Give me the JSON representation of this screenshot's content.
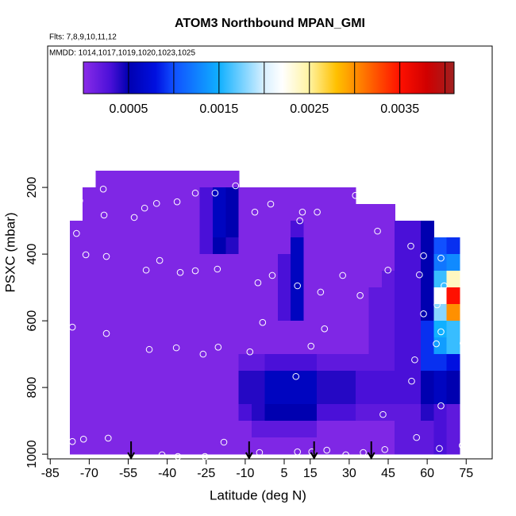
{
  "chart_data": {
    "type": "heatmap",
    "title": "ATOM3 Northbound MPAN_GMI",
    "subtitle": "Flts: 7,8,9,10,11,12",
    "annotation": "MMDD: 1014,1017,1019,1020,1023,1025",
    "x_label": "Latitude (deg N)",
    "y_label": "PSXC (mbar)",
    "xlim": [
      -86,
      85
    ],
    "ylim": [
      1014,
      -224
    ],
    "xticks": [
      -85,
      -70,
      -55,
      -40,
      -25,
      -10,
      5,
      15,
      30,
      45,
      60,
      75
    ],
    "yticks": [
      200,
      400,
      600,
      800,
      1000
    ],
    "x_edges": [
      -77.5,
      -72.5,
      -67.5,
      -62.5,
      -57.5,
      -52.5,
      -47.5,
      -42.5,
      -37.5,
      -32.5,
      -27.5,
      -22.5,
      -17.5,
      -12.5,
      -7.5,
      -2.5,
      2.5,
      7.5,
      12.5,
      17.5,
      22.5,
      27.5,
      32.5,
      37.5,
      42.5,
      47.5,
      52.5,
      57.5,
      62.5,
      67.5,
      72.5
    ],
    "y_edges": [
      150,
      200,
      250,
      300,
      350,
      400,
      450,
      500,
      550,
      600,
      650,
      700,
      750,
      800,
      850,
      900,
      950,
      1000
    ],
    "z": [
      [
        null,
        null,
        5e-05,
        5e-05,
        5e-05,
        5e-05,
        5e-05,
        5e-05,
        5e-05,
        5e-05,
        5e-05,
        5e-05,
        5e-05,
        null,
        null,
        null,
        null,
        null,
        null,
        null,
        null,
        null,
        null,
        null,
        null,
        null,
        null,
        null,
        null,
        null
      ],
      [
        null,
        5e-05,
        5e-05,
        5e-05,
        5e-05,
        5e-05,
        5e-05,
        5e-05,
        5e-05,
        5e-05,
        0.0003,
        0.0006,
        0.0005,
        5e-05,
        5e-05,
        5e-05,
        5e-05,
        5e-05,
        5e-05,
        5e-05,
        5e-05,
        5e-05,
        null,
        null,
        null,
        null,
        null,
        null,
        null,
        null
      ],
      [
        null,
        5e-05,
        5e-05,
        5e-05,
        5e-05,
        5e-05,
        5e-05,
        5e-05,
        5e-05,
        5e-05,
        0.0003,
        0.0006,
        0.0005,
        5e-05,
        5e-05,
        5e-05,
        5e-05,
        5e-05,
        5e-05,
        5e-05,
        5e-05,
        5e-05,
        5e-05,
        5e-05,
        5e-05,
        null,
        null,
        null,
        null,
        null
      ],
      [
        5e-05,
        5e-05,
        5e-05,
        5e-05,
        5e-05,
        5e-05,
        5e-05,
        5e-05,
        5e-05,
        5e-05,
        0.0003,
        0.0006,
        0.0005,
        5e-05,
        5e-05,
        5e-05,
        5e-05,
        0.0003,
        5e-05,
        5e-05,
        5e-05,
        5e-05,
        5e-05,
        5e-05,
        5e-05,
        0.0003,
        0.0003,
        0.0005,
        null,
        null
      ],
      [
        5e-05,
        5e-05,
        5e-05,
        5e-05,
        5e-05,
        5e-05,
        5e-05,
        5e-05,
        5e-05,
        5e-05,
        0.0003,
        0.0005,
        0.0004,
        5e-05,
        5e-05,
        5e-05,
        5e-05,
        0.0006,
        5e-05,
        5e-05,
        5e-05,
        5e-05,
        5e-05,
        5e-05,
        5e-05,
        0.0003,
        0.0003,
        0.0005,
        0.001,
        0.0009
      ],
      [
        5e-05,
        5e-05,
        5e-05,
        5e-05,
        5e-05,
        5e-05,
        5e-05,
        5e-05,
        5e-05,
        5e-05,
        5e-05,
        5e-05,
        5e-05,
        5e-05,
        5e-05,
        5e-05,
        0.0003,
        0.0006,
        5e-05,
        5e-05,
        5e-05,
        5e-05,
        5e-05,
        5e-05,
        5e-05,
        0.0003,
        0.0003,
        0.0005,
        0.0012,
        0.0013
      ],
      [
        5e-05,
        5e-05,
        5e-05,
        5e-05,
        5e-05,
        5e-05,
        5e-05,
        5e-05,
        5e-05,
        5e-05,
        5e-05,
        5e-05,
        5e-05,
        5e-05,
        5e-05,
        5e-05,
        0.0003,
        0.0006,
        5e-05,
        5e-05,
        5e-05,
        5e-05,
        5e-05,
        5e-05,
        0.0002,
        0.0003,
        0.0003,
        0.0005,
        0.0016,
        0.0024
      ],
      [
        5e-05,
        5e-05,
        5e-05,
        5e-05,
        5e-05,
        5e-05,
        5e-05,
        5e-05,
        5e-05,
        5e-05,
        5e-05,
        5e-05,
        5e-05,
        5e-05,
        5e-05,
        5e-05,
        0.0003,
        0.0006,
        5e-05,
        5e-05,
        5e-05,
        5e-05,
        5e-05,
        0.0002,
        0.0002,
        0.0003,
        0.0003,
        0.0005,
        0.0022,
        0.0035
      ],
      [
        5e-05,
        5e-05,
        5e-05,
        5e-05,
        5e-05,
        5e-05,
        5e-05,
        5e-05,
        5e-05,
        5e-05,
        5e-05,
        5e-05,
        5e-05,
        5e-05,
        5e-05,
        5e-05,
        0.0003,
        0.0006,
        5e-05,
        5e-05,
        5e-05,
        5e-05,
        5e-05,
        0.0002,
        0.0002,
        0.0003,
        0.0003,
        0.0005,
        0.0018,
        0.003
      ],
      [
        5e-05,
        5e-05,
        5e-05,
        5e-05,
        5e-05,
        5e-05,
        5e-05,
        5e-05,
        5e-05,
        5e-05,
        5e-05,
        5e-05,
        5e-05,
        5e-05,
        5e-05,
        5e-05,
        5e-05,
        5e-05,
        5e-05,
        5e-05,
        5e-05,
        5e-05,
        5e-05,
        0.0002,
        0.0002,
        0.0003,
        0.0003,
        0.0009,
        0.0015,
        0.0016
      ],
      [
        5e-05,
        5e-05,
        5e-05,
        5e-05,
        5e-05,
        5e-05,
        5e-05,
        5e-05,
        5e-05,
        5e-05,
        5e-05,
        5e-05,
        5e-05,
        5e-05,
        5e-05,
        5e-05,
        5e-05,
        5e-05,
        5e-05,
        5e-05,
        5e-05,
        5e-05,
        5e-05,
        0.0002,
        0.0002,
        0.0003,
        0.0003,
        0.0009,
        0.0014,
        0.0016
      ],
      [
        5e-05,
        5e-05,
        5e-05,
        5e-05,
        5e-05,
        5e-05,
        5e-05,
        5e-05,
        5e-05,
        5e-05,
        5e-05,
        5e-05,
        5e-05,
        0.0002,
        0.0002,
        0.0003,
        0.0003,
        0.0003,
        0.0003,
        0.0002,
        0.0002,
        0.0002,
        0.0002,
        0.0002,
        0.0002,
        0.0003,
        0.0003,
        0.0009,
        0.0009,
        0.0008
      ],
      [
        5e-05,
        5e-05,
        5e-05,
        5e-05,
        5e-05,
        5e-05,
        5e-05,
        5e-05,
        5e-05,
        5e-05,
        5e-05,
        5e-05,
        5e-05,
        0.0004,
        0.0004,
        0.0006,
        0.0006,
        0.0006,
        0.0006,
        0.0004,
        0.0004,
        0.0004,
        0.0003,
        0.0003,
        0.0003,
        0.0003,
        0.0003,
        0.0005,
        0.0006,
        0.0005
      ],
      [
        5e-05,
        5e-05,
        5e-05,
        5e-05,
        5e-05,
        5e-05,
        5e-05,
        5e-05,
        5e-05,
        5e-05,
        5e-05,
        5e-05,
        5e-05,
        0.0004,
        0.0004,
        0.0006,
        0.0006,
        0.0006,
        0.0006,
        0.0004,
        0.0004,
        0.0004,
        0.0003,
        0.0003,
        0.0003,
        0.0003,
        0.0003,
        0.0005,
        0.0006,
        0.0005
      ],
      [
        5e-05,
        5e-05,
        5e-05,
        5e-05,
        5e-05,
        5e-05,
        5e-05,
        5e-05,
        5e-05,
        5e-05,
        5e-05,
        5e-05,
        5e-05,
        0.0003,
        0.0004,
        0.0005,
        0.0005,
        0.0005,
        0.0005,
        0.0003,
        0.0003,
        0.0003,
        0.0002,
        0.0002,
        0.0002,
        0.0002,
        0.0002,
        0.0004,
        0.0003,
        0.0002
      ],
      [
        5e-05,
        5e-05,
        5e-05,
        5e-05,
        5e-05,
        5e-05,
        5e-05,
        5e-05,
        5e-05,
        5e-05,
        5e-05,
        5e-05,
        5e-05,
        5e-05,
        0.0002,
        0.0002,
        0.0002,
        0.0002,
        0.0002,
        5e-05,
        5e-05,
        5e-05,
        5e-05,
        5e-05,
        5e-05,
        0.0002,
        0.0002,
        0.0002,
        0.0003,
        0.0002
      ],
      [
        5e-05,
        5e-05,
        5e-05,
        5e-05,
        5e-05,
        5e-05,
        5e-05,
        5e-05,
        5e-05,
        5e-05,
        5e-05,
        5e-05,
        5e-05,
        5e-05,
        5e-05,
        5e-05,
        5e-05,
        5e-05,
        5e-05,
        5e-05,
        5e-05,
        5e-05,
        5e-05,
        5e-05,
        5e-05,
        0.0002,
        0.0002,
        0.0002,
        0.0003,
        0.0002
      ]
    ],
    "colorscale": [
      {
        "value": 0,
        "color": "#8a2ce8"
      },
      {
        "value": 0.0003,
        "color": "#4a10d8"
      },
      {
        "value": 0.0005,
        "color": "#0000b0"
      },
      {
        "value": 0.0008,
        "color": "#0010e0"
      },
      {
        "value": 0.001,
        "color": "#1050ff"
      },
      {
        "value": 0.0015,
        "color": "#10b0ff"
      },
      {
        "value": 0.002,
        "color": "#d8f0ff"
      },
      {
        "value": 0.0022,
        "color": "#ffffff"
      },
      {
        "value": 0.0025,
        "color": "#fff3a0"
      },
      {
        "value": 0.0028,
        "color": "#ffc000"
      },
      {
        "value": 0.003,
        "color": "#ff9000"
      },
      {
        "value": 0.0035,
        "color": "#ff1000"
      },
      {
        "value": 0.0038,
        "color": "#d00000"
      },
      {
        "value": 0.0041,
        "color": "#a02020"
      }
    ],
    "colorbar_lim": [
      0,
      0.0041
    ],
    "colorbar_ticks": [
      0.0005,
      0.0015,
      0.0025,
      0.0035
    ],
    "colorbar_breaks": [
      0.0005,
      0.001,
      0.0015,
      0.002,
      0.0025,
      0.003,
      0.0035,
      0.004
    ],
    "points": {
      "color": "#ffffff",
      "x": [
        -64.6,
        -73.7,
        -48.7,
        -52.7,
        -44.1,
        -36.2,
        -29.2,
        -21.6,
        -13.7,
        -6.3,
        -64.3,
        -74.9,
        -71.3,
        -63.4,
        -42.9,
        -48.1,
        -35,
        -29.2,
        -20.7,
        12,
        17.7,
        11,
        -0.2,
        32.4,
        40.9,
        53.7,
        58.6,
        65.3,
        -5.1,
        0.4,
        10.1,
        19,
        27.5,
        34.2,
        44.9,
        57,
        63.8,
        66.5,
        58.6,
        65.3,
        63.5,
        73.8,
        -3.3,
        20.5,
        -76.5,
        -63.4,
        -46.9,
        -36.5,
        -26.2,
        -20.4,
        -8.2,
        9.5,
        15.3,
        55.2,
        54,
        65.3,
        43,
        -76.5,
        -72.2,
        -62.7,
        -18.2,
        55.9,
        64.7,
        73.5,
        -4.5,
        10.1,
        15.6,
        21.4,
        28.7,
        35.4,
        43.7,
        -42,
        -35.9,
        -25.5
      ],
      "y": [
        205,
        240,
        262,
        290,
        248,
        243,
        217,
        217,
        195,
        274,
        283,
        338,
        402,
        407,
        419,
        448,
        455,
        450,
        445,
        274,
        274,
        300,
        250,
        224,
        331,
        376,
        405,
        412,
        486,
        464,
        495,
        514,
        464,
        524,
        448,
        462,
        552,
        495,
        579,
        633,
        669,
        667,
        605,
        624,
        619,
        638,
        686,
        681,
        700,
        679,
        693,
        767,
        676,
        717,
        781,
        855,
        881,
        962,
        955,
        952,
        964,
        950,
        983,
        974,
        995,
        993,
        993,
        988,
        1002,
        995,
        986,
        1002,
        1007,
        1007
      ]
    },
    "arrows_x": [
      -53.9,
      -8.5,
      16.5,
      38.5
    ]
  }
}
